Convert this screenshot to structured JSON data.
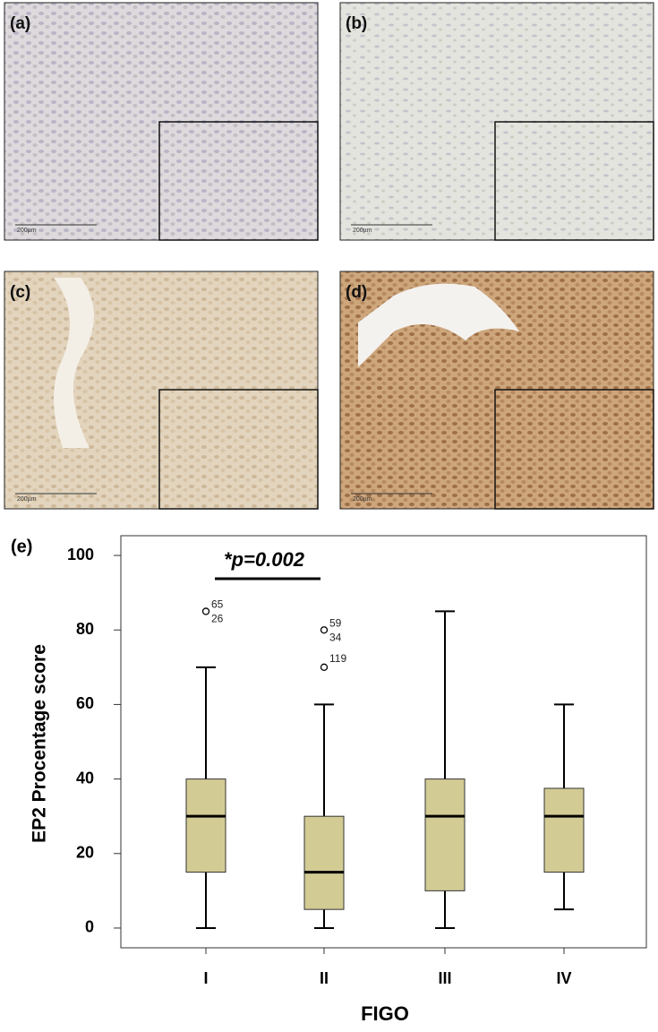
{
  "panels": [
    {
      "label": "(a)",
      "scale": "200µm"
    },
    {
      "label": "(b)",
      "scale": "200µm"
    },
    {
      "label": "(c)",
      "scale": "200µm"
    },
    {
      "label": "(d)",
      "scale": "200µm"
    }
  ],
  "chart_data": {
    "type": "box",
    "panel_label": "(e)",
    "x_label": "FIGO",
    "y_label": "EP2 Procentage score",
    "categories": [
      "I",
      "II",
      "III",
      "IV"
    ],
    "color": "#d3cb94",
    "boxes": [
      {
        "min": 0,
        "q1": 15,
        "median": 30,
        "q3": 40,
        "max": 70,
        "outliers": [
          {
            "value": 85,
            "labels": [
              "65",
              "26"
            ]
          }
        ]
      },
      {
        "min": 0,
        "q1": 5,
        "median": 15,
        "q3": 30,
        "max": 60,
        "outliers": [
          {
            "value": 80,
            "labels": [
              "59",
              "34"
            ]
          },
          {
            "value": 70,
            "labels": [
              "119"
            ]
          }
        ]
      },
      {
        "min": 0,
        "q1": 10,
        "median": 30,
        "q3": 40,
        "max": 85
      },
      {
        "min": 5,
        "q1": 15,
        "median": 30,
        "q3": 37.5,
        "max": 60
      }
    ],
    "ylim": [
      -5.3,
      105.3
    ],
    "yticks": [
      0,
      20,
      40,
      60,
      80,
      100
    ],
    "annotation": "*p=0.002"
  }
}
